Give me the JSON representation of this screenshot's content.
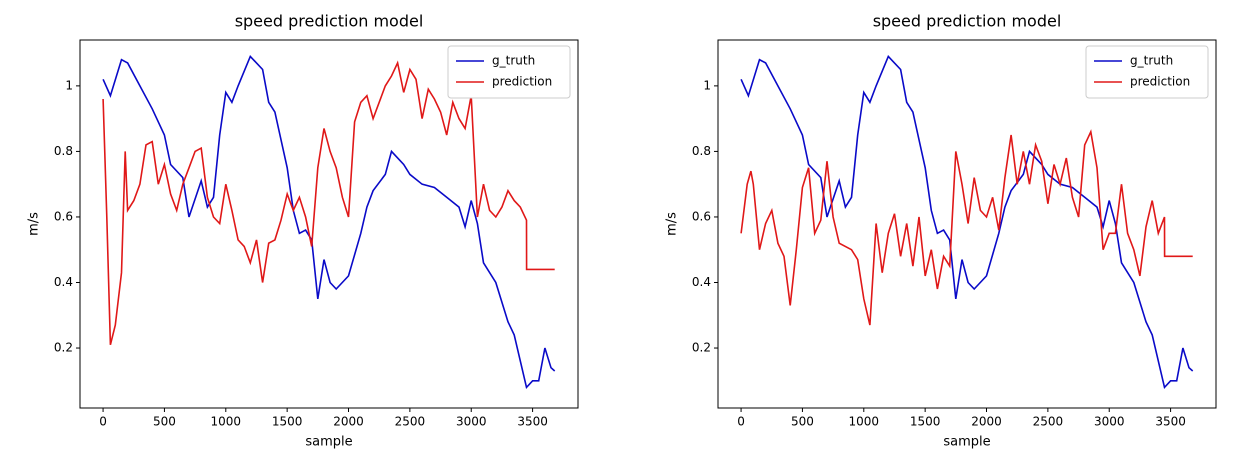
{
  "chart_data": [
    {
      "type": "line",
      "title": "speed prediction model",
      "x_label": "sample",
      "y_label": "m/s",
      "xlim": [
        -188,
        3870
      ],
      "ylim": [
        0.017,
        1.14
      ],
      "xticks": [
        0,
        500,
        1000,
        1500,
        2000,
        2500,
        3000,
        3500
      ],
      "yticks": [
        0.2,
        0.4,
        0.6,
        0.8,
        1.0
      ],
      "legend": "upper right",
      "series": [
        {
          "name": "g_truth",
          "color": "#0a0ac8",
          "x": [
            0,
            60,
            150,
            200,
            300,
            400,
            500,
            550,
            650,
            700,
            800,
            850,
            900,
            950,
            1000,
            1050,
            1100,
            1200,
            1300,
            1350,
            1400,
            1500,
            1550,
            1600,
            1650,
            1700,
            1750,
            1800,
            1850,
            1900,
            2000,
            2100,
            2150,
            2200,
            2300,
            2350,
            2450,
            2500,
            2600,
            2700,
            2800,
            2900,
            2950,
            3000,
            3050,
            3100,
            3200,
            3300,
            3350,
            3450,
            3500,
            3550,
            3600,
            3650,
            3680
          ],
          "values": [
            1.02,
            0.97,
            1.08,
            1.07,
            1.0,
            0.93,
            0.85,
            0.76,
            0.72,
            0.6,
            0.71,
            0.63,
            0.66,
            0.85,
            0.98,
            0.95,
            1.0,
            1.09,
            1.05,
            0.95,
            0.92,
            0.75,
            0.62,
            0.55,
            0.56,
            0.53,
            0.35,
            0.47,
            0.4,
            0.38,
            0.42,
            0.55,
            0.63,
            0.68,
            0.73,
            0.8,
            0.76,
            0.73,
            0.7,
            0.69,
            0.66,
            0.63,
            0.57,
            0.65,
            0.58,
            0.46,
            0.4,
            0.28,
            0.24,
            0.08,
            0.1,
            0.1,
            0.2,
            0.14,
            0.13
          ]
        },
        {
          "name": "prediction",
          "color": "#e01818",
          "x": [
            0,
            30,
            60,
            100,
            150,
            180,
            200,
            250,
            300,
            350,
            400,
            450,
            500,
            550,
            600,
            650,
            700,
            750,
            800,
            850,
            900,
            950,
            1000,
            1050,
            1100,
            1150,
            1200,
            1250,
            1300,
            1350,
            1400,
            1450,
            1500,
            1550,
            1600,
            1650,
            1700,
            1750,
            1800,
            1850,
            1900,
            1950,
            2000,
            2050,
            2100,
            2150,
            2200,
            2250,
            2300,
            2350,
            2400,
            2450,
            2500,
            2550,
            2600,
            2650,
            2700,
            2750,
            2800,
            2850,
            2900,
            2950,
            3000,
            3050,
            3100,
            3150,
            3200,
            3250,
            3300,
            3350,
            3400,
            3450,
            3451,
            3680
          ],
          "values": [
            0.96,
            0.6,
            0.21,
            0.27,
            0.43,
            0.8,
            0.62,
            0.65,
            0.7,
            0.82,
            0.83,
            0.7,
            0.76,
            0.67,
            0.62,
            0.7,
            0.75,
            0.8,
            0.81,
            0.66,
            0.6,
            0.58,
            0.7,
            0.62,
            0.53,
            0.51,
            0.46,
            0.53,
            0.4,
            0.52,
            0.53,
            0.59,
            0.67,
            0.62,
            0.66,
            0.6,
            0.51,
            0.75,
            0.87,
            0.8,
            0.75,
            0.66,
            0.6,
            0.89,
            0.95,
            0.97,
            0.9,
            0.95,
            1.0,
            1.03,
            1.07,
            0.98,
            1.05,
            1.02,
            0.9,
            0.99,
            0.96,
            0.92,
            0.85,
            0.95,
            0.9,
            0.87,
            0.97,
            0.6,
            0.7,
            0.62,
            0.6,
            0.63,
            0.68,
            0.65,
            0.63,
            0.59,
            0.44,
            0.44
          ]
        }
      ]
    },
    {
      "type": "line",
      "title": "speed prediction model",
      "x_label": "sample",
      "y_label": "m/s",
      "xlim": [
        -188,
        3870
      ],
      "ylim": [
        0.017,
        1.14
      ],
      "xticks": [
        0,
        500,
        1000,
        1500,
        2000,
        2500,
        3000,
        3500
      ],
      "yticks": [
        0.2,
        0.4,
        0.6,
        0.8,
        1.0
      ],
      "legend": "upper right",
      "series": [
        {
          "name": "g_truth",
          "color": "#0a0ac8",
          "x": [
            0,
            60,
            150,
            200,
            300,
            400,
            500,
            550,
            650,
            700,
            800,
            850,
            900,
            950,
            1000,
            1050,
            1100,
            1200,
            1300,
            1350,
            1400,
            1500,
            1550,
            1600,
            1650,
            1700,
            1750,
            1800,
            1850,
            1900,
            2000,
            2100,
            2150,
            2200,
            2300,
            2350,
            2450,
            2500,
            2600,
            2700,
            2800,
            2900,
            2950,
            3000,
            3050,
            3100,
            3200,
            3300,
            3350,
            3450,
            3500,
            3550,
            3600,
            3650,
            3680
          ],
          "values": [
            1.02,
            0.97,
            1.08,
            1.07,
            1.0,
            0.93,
            0.85,
            0.76,
            0.72,
            0.6,
            0.71,
            0.63,
            0.66,
            0.85,
            0.98,
            0.95,
            1.0,
            1.09,
            1.05,
            0.95,
            0.92,
            0.75,
            0.62,
            0.55,
            0.56,
            0.53,
            0.35,
            0.47,
            0.4,
            0.38,
            0.42,
            0.55,
            0.63,
            0.68,
            0.73,
            0.8,
            0.76,
            0.73,
            0.7,
            0.69,
            0.66,
            0.63,
            0.57,
            0.65,
            0.58,
            0.46,
            0.4,
            0.28,
            0.24,
            0.08,
            0.1,
            0.1,
            0.2,
            0.14,
            0.13
          ]
        },
        {
          "name": "prediction",
          "color": "#e01818",
          "x": [
            0,
            50,
            80,
            100,
            150,
            200,
            250,
            300,
            350,
            400,
            450,
            500,
            550,
            600,
            650,
            700,
            750,
            800,
            900,
            950,
            1000,
            1050,
            1100,
            1150,
            1200,
            1250,
            1300,
            1350,
            1400,
            1450,
            1500,
            1550,
            1600,
            1650,
            1700,
            1750,
            1800,
            1850,
            1900,
            1950,
            2000,
            2050,
            2100,
            2150,
            2200,
            2250,
            2300,
            2350,
            2400,
            2450,
            2500,
            2550,
            2600,
            2650,
            2700,
            2750,
            2800,
            2850,
            2900,
            2950,
            3000,
            3050,
            3100,
            3150,
            3200,
            3250,
            3300,
            3350,
            3400,
            3450,
            3451,
            3680
          ],
          "values": [
            0.55,
            0.7,
            0.74,
            0.7,
            0.5,
            0.58,
            0.62,
            0.52,
            0.48,
            0.33,
            0.5,
            0.69,
            0.75,
            0.55,
            0.59,
            0.77,
            0.6,
            0.52,
            0.5,
            0.47,
            0.35,
            0.27,
            0.58,
            0.43,
            0.55,
            0.61,
            0.48,
            0.58,
            0.45,
            0.6,
            0.42,
            0.5,
            0.38,
            0.48,
            0.45,
            0.8,
            0.7,
            0.58,
            0.72,
            0.62,
            0.6,
            0.66,
            0.56,
            0.72,
            0.85,
            0.7,
            0.8,
            0.7,
            0.82,
            0.77,
            0.64,
            0.76,
            0.7,
            0.78,
            0.66,
            0.6,
            0.82,
            0.86,
            0.75,
            0.5,
            0.55,
            0.55,
            0.7,
            0.55,
            0.5,
            0.42,
            0.57,
            0.65,
            0.55,
            0.6,
            0.48,
            0.48
          ]
        }
      ]
    }
  ]
}
